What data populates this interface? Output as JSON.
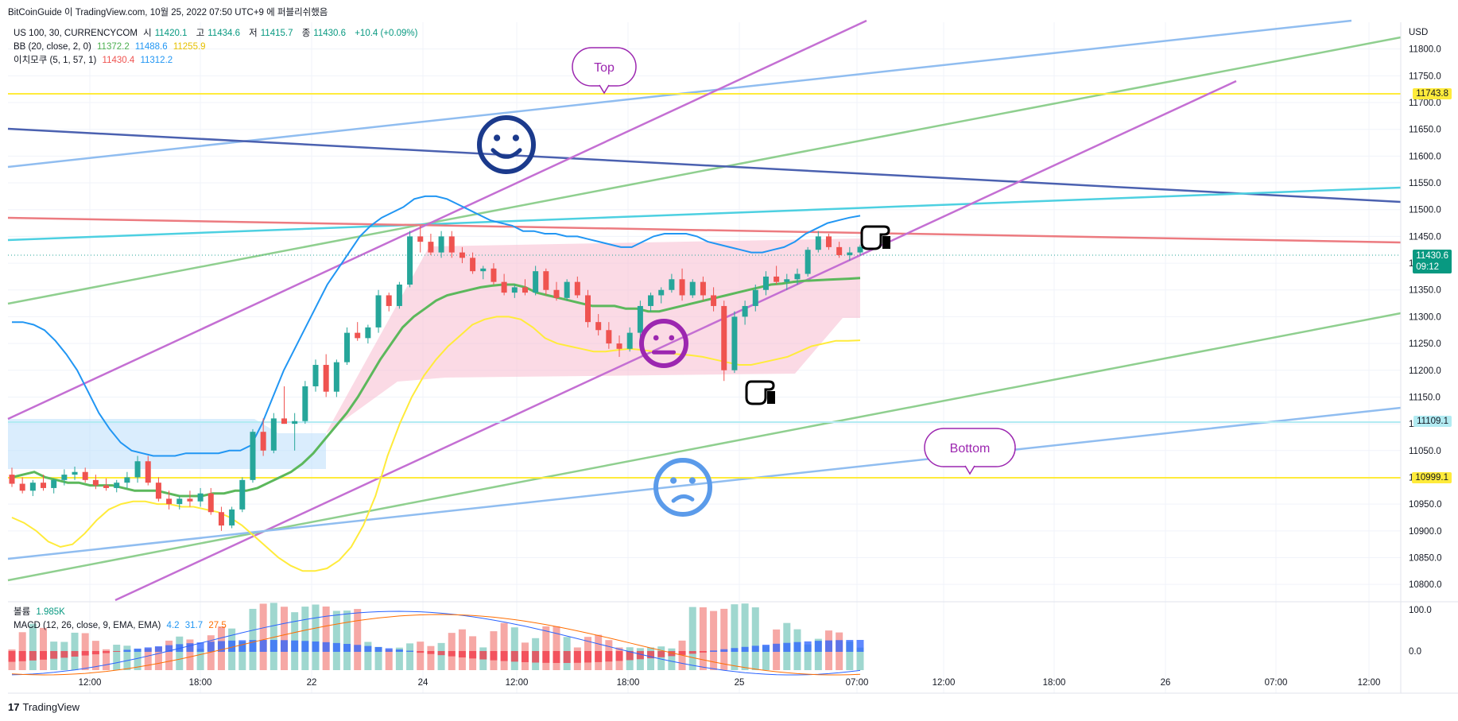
{
  "attribution": "BitCoinGuide 이 TradingView.com, 10월 25, 2022 07:50 UTC+9 에 퍼블리쉬했음",
  "footer": {
    "logo": "17",
    "brand": "TradingView"
  },
  "legend": {
    "symbol": "US 100, 30, CURRENCYCOM",
    "ohlc": [
      {
        "label": "시",
        "value": "11420.1"
      },
      {
        "label": "고",
        "value": "11434.6"
      },
      {
        "label": "저",
        "value": "11415.7"
      },
      {
        "label": "종",
        "value": "11430.6"
      }
    ],
    "change": "+10.4 (+0.09%)",
    "bb": {
      "label": "BB (20, close, 2, 0)",
      "basis": "11372.2",
      "upper": "11488.6",
      "lower": "11255.9"
    },
    "ichimoku": {
      "label": "이치모쿠 (5, 1, 57, 1)",
      "v1": "11430.4",
      "v2": "11312.2"
    },
    "volume": {
      "label": "볼륨",
      "value": "1.985K"
    },
    "macd": {
      "label": "MACD (12, 26, close, 9, EMA, EMA)",
      "hist": "4.2",
      "macd": "31.7",
      "signal": "27.5"
    }
  },
  "price_axis": {
    "unit": "USD",
    "ticks": [
      "11800.0",
      "11750.0",
      "11700.0",
      "11650.0",
      "11600.0",
      "11550.0",
      "11500.0",
      "11450.0",
      "11400.0",
      "11350.0",
      "11300.0",
      "11250.0",
      "11200.0",
      "11150.0",
      "11100.0",
      "11050.0",
      "11000.0",
      "10950.0",
      "10900.0",
      "10850.0",
      "10800.0"
    ]
  },
  "price_tags": {
    "top_line": "11743.8",
    "current": "11430.6",
    "countdown": "09:12",
    "mid_line": "11109.1",
    "bottom_line": "10999.1"
  },
  "macd_axis": {
    "ticks": [
      "100.0",
      "0.0"
    ]
  },
  "time_axis": [
    "12:00",
    "18:00",
    "22",
    "24",
    "12:00",
    "18:00",
    "25",
    "07:00",
    "12:00",
    "18:00",
    "26",
    "07:00",
    "12:00"
  ],
  "annotations": {
    "top": "Top",
    "bottom": "Bottom"
  },
  "icons": [
    "smiley-happy-icon",
    "smiley-neutral-icon",
    "smiley-sad-icon",
    "pointing-hand-icon"
  ],
  "colors": {
    "up": "#26a69a",
    "down": "#ef5350",
    "bb_basis": "#5cb85c",
    "bb_upper": "#2196f3",
    "bb_lower": "#ffeb3b",
    "top_line": "#ffeb3b",
    "current": "#089981",
    "mid_line": "#b2ebf2",
    "bottom_line": "#ffeb3b"
  },
  "chart_data": {
    "type": "candlestick",
    "symbol": "US 100, 30, CURRENCYCOM",
    "ylim": [
      10775,
      11850
    ],
    "candles": [
      {
        "o": 11005,
        "h": 11018,
        "l": 10982,
        "c": 10988
      },
      {
        "o": 10988,
        "h": 11000,
        "l": 10970,
        "c": 10975
      },
      {
        "o": 10975,
        "h": 10995,
        "l": 10965,
        "c": 10990
      },
      {
        "o": 10990,
        "h": 11005,
        "l": 10975,
        "c": 10980
      },
      {
        "o": 10980,
        "h": 10998,
        "l": 10970,
        "c": 10995
      },
      {
        "o": 10995,
        "h": 11015,
        "l": 10985,
        "c": 11005
      },
      {
        "o": 11005,
        "h": 11020,
        "l": 10995,
        "c": 11010
      },
      {
        "o": 11010,
        "h": 11018,
        "l": 10990,
        "c": 10995
      },
      {
        "o": 10995,
        "h": 11005,
        "l": 10978,
        "c": 10985
      },
      {
        "o": 10985,
        "h": 10998,
        "l": 10975,
        "c": 10980
      },
      {
        "o": 10980,
        "h": 10995,
        "l": 10972,
        "c": 10990
      },
      {
        "o": 10990,
        "h": 11010,
        "l": 10980,
        "c": 11000
      },
      {
        "o": 11000,
        "h": 11040,
        "l": 10990,
        "c": 11030
      },
      {
        "o": 11030,
        "h": 11040,
        "l": 10985,
        "c": 10990
      },
      {
        "o": 10990,
        "h": 11000,
        "l": 10955,
        "c": 10960
      },
      {
        "o": 10960,
        "h": 10975,
        "l": 10940,
        "c": 10950
      },
      {
        "o": 10950,
        "h": 10965,
        "l": 10940,
        "c": 10960
      },
      {
        "o": 10960,
        "h": 10975,
        "l": 10945,
        "c": 10955
      },
      {
        "o": 10955,
        "h": 10980,
        "l": 10945,
        "c": 10970
      },
      {
        "o": 10970,
        "h": 10980,
        "l": 10930,
        "c": 10935
      },
      {
        "o": 10935,
        "h": 10945,
        "l": 10900,
        "c": 10910
      },
      {
        "o": 10910,
        "h": 10945,
        "l": 10905,
        "c": 10940
      },
      {
        "o": 10940,
        "h": 11000,
        "l": 10935,
        "c": 10995
      },
      {
        "o": 10995,
        "h": 11090,
        "l": 10990,
        "c": 11085
      },
      {
        "o": 11085,
        "h": 11110,
        "l": 11040,
        "c": 11050
      },
      {
        "o": 11050,
        "h": 11120,
        "l": 11045,
        "c": 11110
      },
      {
        "o": 11110,
        "h": 11170,
        "l": 11100,
        "c": 11100
      },
      {
        "o": 11100,
        "h": 11120,
        "l": 11050,
        "c": 11105
      },
      {
        "o": 11105,
        "h": 11180,
        "l": 11100,
        "c": 11170
      },
      {
        "o": 11170,
        "h": 11220,
        "l": 11160,
        "c": 11210
      },
      {
        "o": 11210,
        "h": 11230,
        "l": 11150,
        "c": 11160
      },
      {
        "o": 11160,
        "h": 11220,
        "l": 11150,
        "c": 11215
      },
      {
        "o": 11215,
        "h": 11280,
        "l": 11210,
        "c": 11270
      },
      {
        "o": 11270,
        "h": 11290,
        "l": 11255,
        "c": 11260
      },
      {
        "o": 11260,
        "h": 11285,
        "l": 11250,
        "c": 11280
      },
      {
        "o": 11280,
        "h": 11350,
        "l": 11270,
        "c": 11340
      },
      {
        "o": 11340,
        "h": 11345,
        "l": 11310,
        "c": 11320
      },
      {
        "o": 11320,
        "h": 11365,
        "l": 11315,
        "c": 11360
      },
      {
        "o": 11360,
        "h": 11460,
        "l": 11355,
        "c": 11450
      },
      {
        "o": 11450,
        "h": 11470,
        "l": 11420,
        "c": 11440
      },
      {
        "o": 11440,
        "h": 11455,
        "l": 11415,
        "c": 11420
      },
      {
        "o": 11420,
        "h": 11460,
        "l": 11410,
        "c": 11450
      },
      {
        "o": 11450,
        "h": 11460,
        "l": 11410,
        "c": 11420
      },
      {
        "o": 11420,
        "h": 11430,
        "l": 11400,
        "c": 11410
      },
      {
        "o": 11410,
        "h": 11420,
        "l": 11380,
        "c": 11385
      },
      {
        "o": 11385,
        "h": 11395,
        "l": 11370,
        "c": 11390
      },
      {
        "o": 11390,
        "h": 11400,
        "l": 11360,
        "c": 11365
      },
      {
        "o": 11365,
        "h": 11380,
        "l": 11340,
        "c": 11345
      },
      {
        "o": 11345,
        "h": 11360,
        "l": 11335,
        "c": 11355
      },
      {
        "o": 11355,
        "h": 11370,
        "l": 11340,
        "c": 11345
      },
      {
        "o": 11345,
        "h": 11395,
        "l": 11340,
        "c": 11385
      },
      {
        "o": 11385,
        "h": 11390,
        "l": 11340,
        "c": 11350
      },
      {
        "o": 11350,
        "h": 11365,
        "l": 11330,
        "c": 11335
      },
      {
        "o": 11335,
        "h": 11370,
        "l": 11330,
        "c": 11365
      },
      {
        "o": 11365,
        "h": 11375,
        "l": 11335,
        "c": 11340
      },
      {
        "o": 11340,
        "h": 11350,
        "l": 11280,
        "c": 11290
      },
      {
        "o": 11290,
        "h": 11305,
        "l": 11265,
        "c": 11275
      },
      {
        "o": 11275,
        "h": 11290,
        "l": 11240,
        "c": 11250
      },
      {
        "o": 11250,
        "h": 11265,
        "l": 11225,
        "c": 11240
      },
      {
        "o": 11240,
        "h": 11280,
        "l": 11235,
        "c": 11270
      },
      {
        "o": 11270,
        "h": 11330,
        "l": 11260,
        "c": 11320
      },
      {
        "o": 11320,
        "h": 11345,
        "l": 11310,
        "c": 11340
      },
      {
        "o": 11340,
        "h": 11355,
        "l": 11325,
        "c": 11350
      },
      {
        "o": 11350,
        "h": 11380,
        "l": 11345,
        "c": 11370
      },
      {
        "o": 11370,
        "h": 11390,
        "l": 11330,
        "c": 11340
      },
      {
        "o": 11340,
        "h": 11370,
        "l": 11335,
        "c": 11365
      },
      {
        "o": 11365,
        "h": 11375,
        "l": 11330,
        "c": 11340
      },
      {
        "o": 11340,
        "h": 11355,
        "l": 11310,
        "c": 11320
      },
      {
        "o": 11320,
        "h": 11330,
        "l": 11180,
        "c": 11200
      },
      {
        "o": 11200,
        "h": 11310,
        "l": 11195,
        "c": 11300
      },
      {
        "o": 11300,
        "h": 11330,
        "l": 11285,
        "c": 11320
      },
      {
        "o": 11320,
        "h": 11360,
        "l": 11310,
        "c": 11350
      },
      {
        "o": 11350,
        "h": 11385,
        "l": 11340,
        "c": 11375
      },
      {
        "o": 11375,
        "h": 11395,
        "l": 11360,
        "c": 11365
      },
      {
        "o": 11365,
        "h": 11380,
        "l": 11350,
        "c": 11370
      },
      {
        "o": 11370,
        "h": 11390,
        "l": 11360,
        "c": 11380
      },
      {
        "o": 11380,
        "h": 11430,
        "l": 11375,
        "c": 11425
      },
      {
        "o": 11425,
        "h": 11460,
        "l": 11420,
        "c": 11450
      },
      {
        "o": 11450,
        "h": 11455,
        "l": 11425,
        "c": 11430
      },
      {
        "o": 11430,
        "h": 11440,
        "l": 11410,
        "c": 11415
      },
      {
        "o": 11415,
        "h": 11430,
        "l": 11405,
        "c": 11420
      },
      {
        "o": 11420,
        "h": 11434.6,
        "l": 11415.7,
        "c": 11430.6
      }
    ],
    "bb_upper": [
      11290,
      11290,
      11285,
      11275,
      11255,
      11230,
      11200,
      11160,
      11120,
      11090,
      11065,
      11050,
      11045,
      11040,
      11040,
      11040,
      11045,
      11045,
      11045,
      11045,
      11050,
      11050,
      11060,
      11100,
      11150,
      11200,
      11240,
      11280,
      11320,
      11360,
      11390,
      11420,
      11450,
      11470,
      11485,
      11495,
      11505,
      11520,
      11525,
      11525,
      11520,
      11510,
      11500,
      11490,
      11480,
      11475,
      11470,
      11460,
      11460,
      11455,
      11455,
      11450,
      11450,
      11445,
      11440,
      11435,
      11430,
      11430,
      11440,
      11450,
      11455,
      11455,
      11455,
      11450,
      11440,
      11435,
      11430,
      11425,
      11420,
      11420,
      11425,
      11430,
      11440,
      11455,
      11465,
      11475,
      11480,
      11485,
      11488.6
    ],
    "bb_basis": [
      11000,
      11005,
      11010,
      11000,
      10995,
      10990,
      10990,
      10985,
      10985,
      10985,
      10980,
      10975,
      10975,
      10975,
      10970,
      10965,
      10965,
      10965,
      10970,
      10970,
      10975,
      10975,
      10980,
      10990,
      11000,
      11010,
      11025,
      11045,
      11070,
      11095,
      11120,
      11150,
      11185,
      11220,
      11250,
      11280,
      11300,
      11315,
      11330,
      11340,
      11345,
      11350,
      11355,
      11358,
      11360,
      11360,
      11355,
      11345,
      11340,
      11335,
      11330,
      11325,
      11320,
      11320,
      11320,
      11315,
      11315,
      11310,
      11310,
      11315,
      11320,
      11325,
      11330,
      11335,
      11340,
      11345,
      11350,
      11355,
      11360,
      11362,
      11365,
      11367,
      11368,
      11369,
      11370,
      11371,
      11372.2
    ],
    "bb_lower": [
      10925,
      10915,
      10900,
      10880,
      10870,
      10875,
      10895,
      10920,
      10940,
      10950,
      10955,
      10955,
      10950,
      10950,
      10945,
      10945,
      10940,
      10935,
      10925,
      10910,
      10890,
      10870,
      10850,
      10835,
      10825,
      10825,
      10830,
      10845,
      10870,
      10910,
      10965,
      11040,
      11100,
      11150,
      11190,
      11220,
      11245,
      11265,
      11285,
      11295,
      11300,
      11300,
      11295,
      11280,
      11260,
      11250,
      11245,
      11240,
      11235,
      11235,
      11238,
      11240,
      11238,
      11235,
      11232,
      11230,
      11228,
      11225,
      11220,
      11215,
      11210,
      11210,
      11215,
      11220,
      11225,
      11235,
      11245,
      11250,
      11255,
      11255,
      11255.9
    ]
  }
}
